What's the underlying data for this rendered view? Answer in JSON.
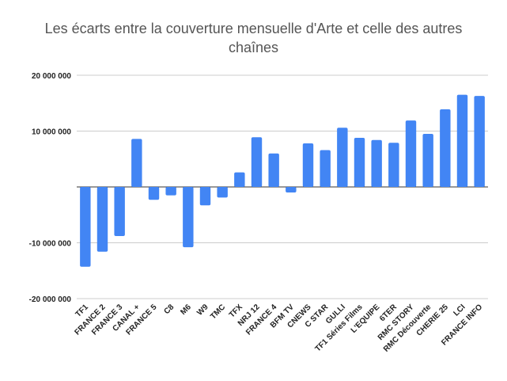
{
  "chart_data": {
    "type": "bar",
    "title_lines": [
      "Les écarts entre la couverture mensuelle d'Arte et celle des autres",
      "chaînes"
    ],
    "xlabel": "",
    "ylabel": "",
    "ylim": [
      -20000000,
      20000000
    ],
    "yticks": [
      20000000,
      10000000,
      0,
      -10000000,
      -20000000
    ],
    "ytick_labels": [
      "20 000 000",
      "10 000 000",
      "",
      "-10 000 000",
      "-20 000 000"
    ],
    "grid": true,
    "legend": "none",
    "bar_color": "#4285f4",
    "categories": [
      "TF1",
      "FRANCE 2",
      "FRANCE 3",
      "CANAL +",
      "FRANCE 5",
      "C8",
      "M6",
      "W9",
      "TMC",
      "TFX",
      "NRJ 12",
      "FRANCE 4",
      "BFM TV",
      "CNEWS",
      "C STAR",
      "GULLI",
      "TF1 Séries Films",
      "L'EQUIPE",
      "6TER",
      "RMC STORY",
      "RMC Découverte",
      "CHERIE 25",
      "LCI",
      "FRANCE INFO"
    ],
    "values": [
      -14300000,
      -11600000,
      -8800000,
      8600000,
      -2300000,
      -1500000,
      -10800000,
      -3300000,
      -1900000,
      2600000,
      8900000,
      6000000,
      -1000000,
      7800000,
      6600000,
      10600000,
      8800000,
      8400000,
      7900000,
      11900000,
      9500000,
      13900000,
      16500000,
      16300000
    ]
  }
}
